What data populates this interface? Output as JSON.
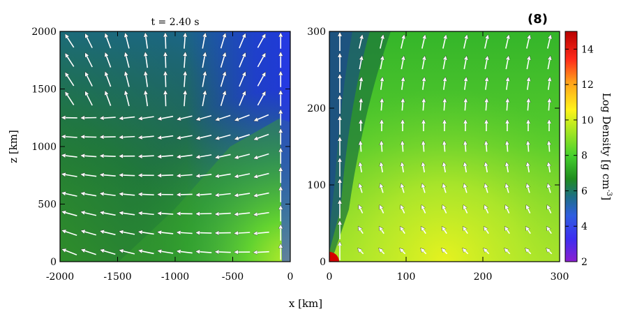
{
  "figure": {
    "time_label": "t = 2.40 s",
    "panel_tag": "(8)",
    "x_axis_label": "x [km]",
    "y_axis_label": "z [km]",
    "colorbar_label": "Log Density [g cm",
    "colorbar_label_exponent": "-3",
    "colorbar_label_close": "]",
    "colorbar_ticks": [
      "2",
      "4",
      "6",
      "8",
      "10",
      "12",
      "14"
    ]
  },
  "chart_data": [
    {
      "type": "heatmap",
      "panel": "left",
      "title": "t = 2.40 s",
      "xlabel": "x [km]",
      "ylabel": "z [km]",
      "xlim": [
        -2000,
        0
      ],
      "ylim": [
        0,
        2000
      ],
      "x_ticks": [
        "-2000",
        "-1500",
        "-1000",
        "-500",
        "0"
      ],
      "y_ticks": [
        "0",
        "500",
        "1000",
        "1500",
        "2000"
      ],
      "overlay": "velocity field arrows (white)",
      "colormap": "rainbow",
      "color_range": [
        2,
        15
      ]
    },
    {
      "type": "heatmap",
      "panel": "right",
      "xlabel": "x [km]",
      "xlim": [
        0,
        300
      ],
      "ylim": [
        0,
        300
      ],
      "x_ticks": [
        "0",
        "100",
        "200",
        "300"
      ],
      "y_ticks": [
        "0",
        "100",
        "200",
        "300"
      ],
      "overlay": "velocity field arrows (white)",
      "colormap": "rainbow",
      "color_range": [
        2,
        15
      ]
    },
    {
      "type": "colorbar",
      "label": "Log Density [g cm-3]",
      "range": [
        2,
        15
      ],
      "ticks": [
        2,
        4,
        6,
        8,
        10,
        12,
        14
      ],
      "colors": [
        "#8b1fd0",
        "#2f2ff0",
        "#1e6e88",
        "#1f8c1f",
        "#45d12e",
        "#c3ec1f",
        "#fff31a",
        "#ffa01a",
        "#ff2a1a",
        "#b80000"
      ]
    }
  ]
}
